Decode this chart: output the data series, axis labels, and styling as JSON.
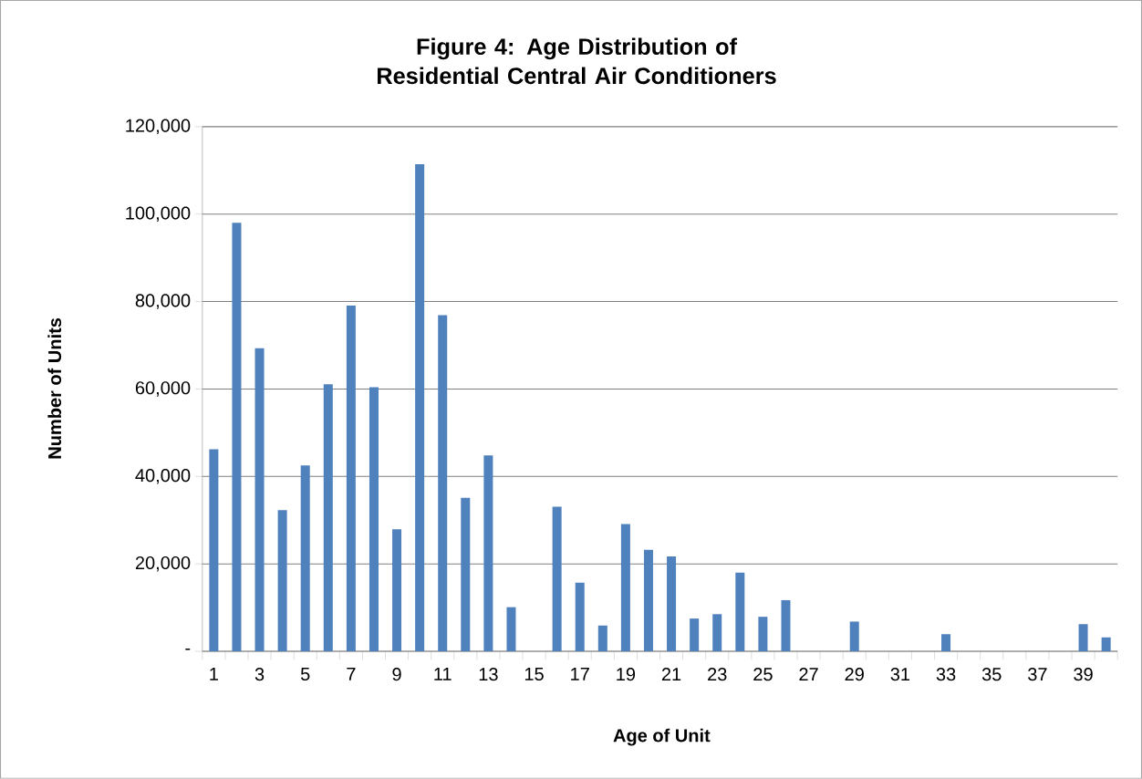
{
  "chart_data": {
    "type": "bar",
    "title": "Figure 4: Age Distribution of Residential Central Air  Conditioners",
    "xlabel": "Age of Unit",
    "ylabel": "Number of Units",
    "categories": [
      "1",
      null,
      "3",
      null,
      "5",
      null,
      "7",
      null,
      "9",
      null,
      "11",
      null,
      "13",
      null,
      "15",
      null,
      "17",
      null,
      "19",
      null,
      "21",
      null,
      "23",
      null,
      "25",
      null,
      "27",
      null,
      "29",
      null,
      "31",
      null,
      "33",
      null,
      "35",
      null,
      "37",
      null,
      "39",
      null
    ],
    "values": [
      46200,
      98000,
      69300,
      32300,
      42500,
      61100,
      79100,
      60400,
      27900,
      111400,
      76900,
      35100,
      44800,
      10100,
      0,
      33100,
      15700,
      5900,
      29100,
      23200,
      21700,
      7500,
      8500,
      18000,
      7900,
      11700,
      0,
      0,
      6800,
      0,
      0,
      0,
      3900,
      0,
      0,
      0,
      0,
      0,
      6200,
      3200
    ],
    "color": "#4f81bd",
    "ylim": [
      0,
      120000
    ],
    "yticks": [
      {
        "value": 0,
        "label": "-"
      },
      {
        "value": 20000,
        "label": "20,000"
      },
      {
        "value": 40000,
        "label": "40,000"
      },
      {
        "value": 60000,
        "label": "60,000"
      },
      {
        "value": 80000,
        "label": "80,000"
      },
      {
        "value": 100000,
        "label": "100,000"
      },
      {
        "value": 120000,
        "label": "120,000"
      }
    ],
    "grid": "y"
  }
}
